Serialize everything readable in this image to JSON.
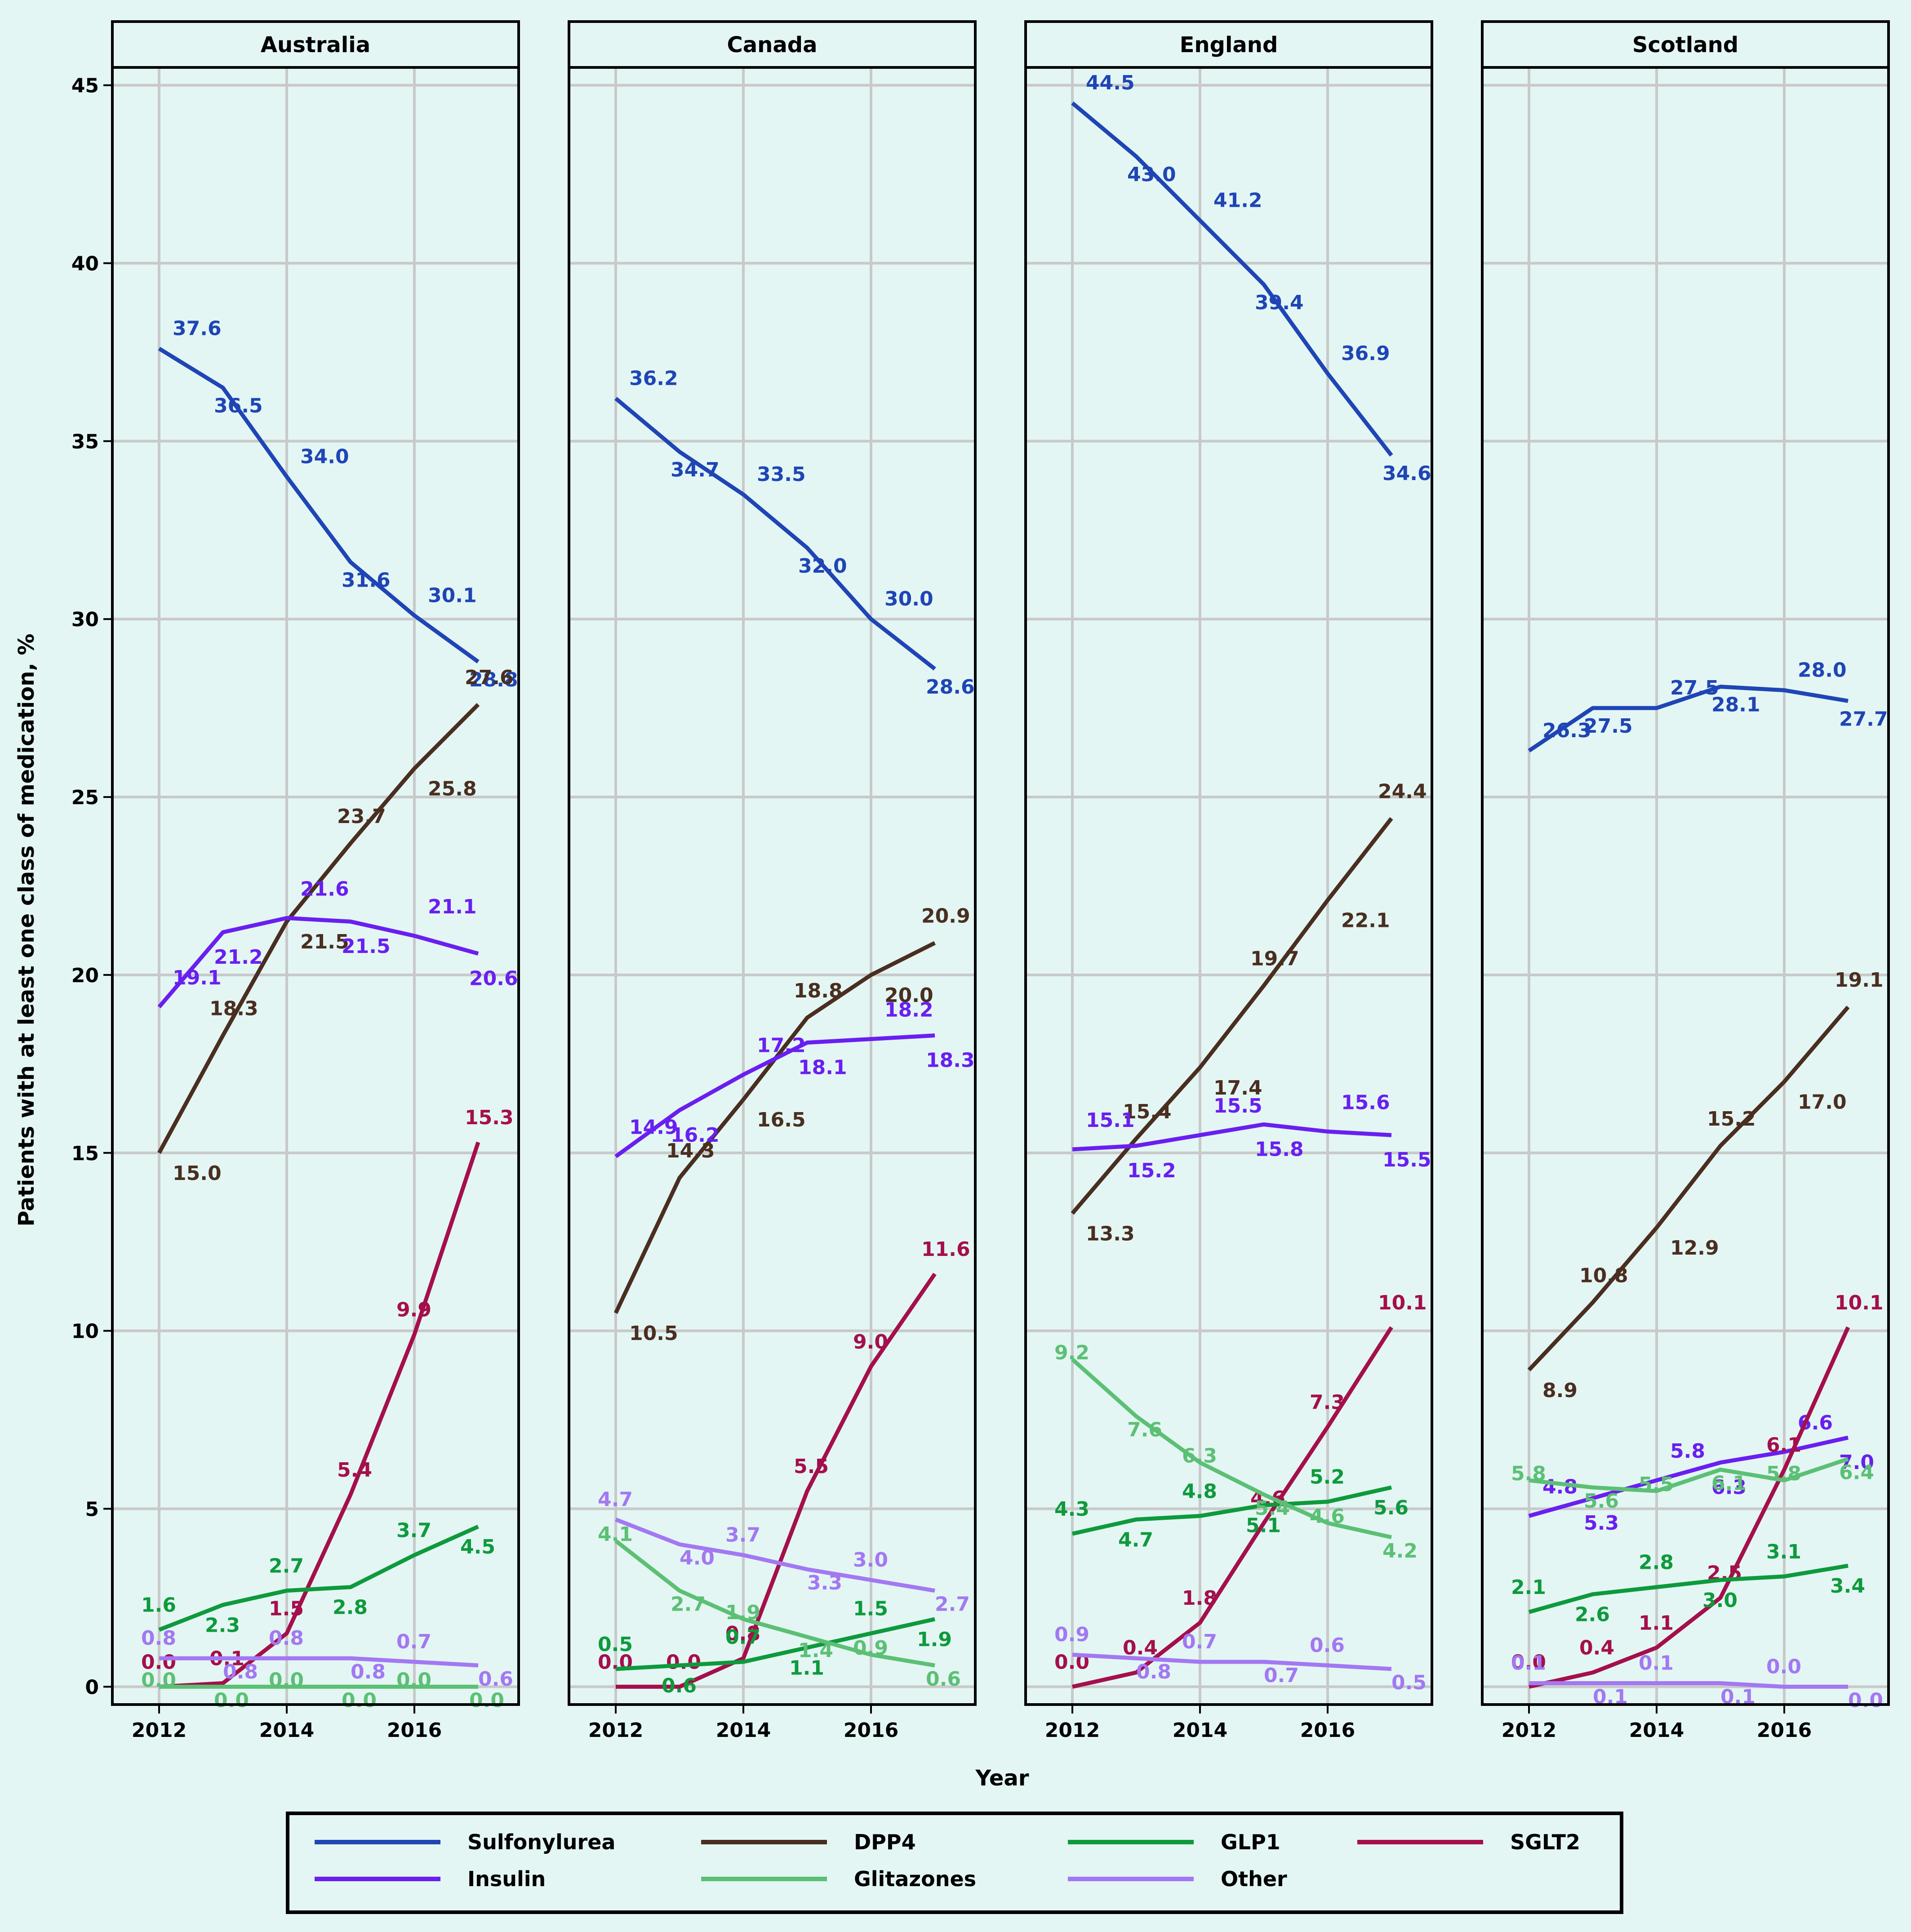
{
  "chart_data": {
    "type": "line",
    "ylabel": "Patients with at least one class of medication, %",
    "xlabel": "Year",
    "x": [
      2012,
      2013,
      2014,
      2015,
      2016,
      2017
    ],
    "xticks": [
      "2012",
      "2014",
      "2016"
    ],
    "yticks": [
      "0",
      "5",
      "10",
      "15",
      "20",
      "25",
      "30",
      "35",
      "40",
      "45"
    ],
    "ylim": [
      -0.5,
      45.5
    ],
    "grid": true,
    "legend_position": "bottom",
    "colors": {
      "Sulfonylurea": "#1f45b5",
      "DPP4": "#4a2e20",
      "GLP1": "#0e9a3c",
      "SGLT2": "#a50f4b",
      "Insulin": "#6a1ff0",
      "Glitazones": "#5cc074",
      "Other": "#a378f2"
    },
    "legend": [
      "Sulfonylurea",
      "DPP4",
      "GLP1",
      "SGLT2",
      "Insulin",
      "Glitazones",
      "Other"
    ],
    "panels": [
      {
        "name": "Australia",
        "series": [
          {
            "name": "Sulfonylurea",
            "values": [
              37.6,
              36.5,
              34.0,
              31.6,
              30.1,
              28.8
            ]
          },
          {
            "name": "DPP4",
            "values": [
              15.0,
              18.3,
              21.5,
              23.7,
              25.8,
              27.6
            ]
          },
          {
            "name": "Insulin",
            "values": [
              19.1,
              21.2,
              21.6,
              21.5,
              21.1,
              20.6
            ]
          },
          {
            "name": "SGLT2",
            "values": [
              0.0,
              0.1,
              1.5,
              5.4,
              9.9,
              15.3
            ]
          },
          {
            "name": "GLP1",
            "values": [
              1.6,
              2.3,
              2.7,
              2.8,
              3.7,
              4.5
            ]
          },
          {
            "name": "Other",
            "values": [
              0.8,
              0.8,
              0.8,
              0.8,
              0.7,
              0.6
            ]
          },
          {
            "name": "Glitazones",
            "values": [
              0.0,
              0.0,
              0.0,
              0.0,
              0.0,
              0.0
            ]
          }
        ]
      },
      {
        "name": "Canada",
        "series": [
          {
            "name": "Sulfonylurea",
            "values": [
              36.2,
              34.7,
              33.5,
              32.0,
              30.0,
              28.6
            ]
          },
          {
            "name": "DPP4",
            "values": [
              10.5,
              14.3,
              16.5,
              18.8,
              20.0,
              20.9
            ]
          },
          {
            "name": "Insulin",
            "values": [
              14.9,
              16.2,
              17.2,
              18.1,
              18.2,
              18.3
            ]
          },
          {
            "name": "SGLT2",
            "values": [
              0.0,
              0.0,
              0.8,
              5.5,
              9.0,
              11.6
            ]
          },
          {
            "name": "GLP1",
            "values": [
              0.5,
              0.6,
              0.7,
              1.1,
              1.5,
              1.9
            ]
          },
          {
            "name": "Other",
            "values": [
              4.7,
              4.0,
              3.7,
              3.3,
              3.0,
              2.7
            ]
          },
          {
            "name": "Glitazones",
            "values": [
              4.1,
              2.7,
              1.9,
              1.4,
              0.9,
              0.6
            ]
          }
        ]
      },
      {
        "name": "England",
        "series": [
          {
            "name": "Sulfonylurea",
            "values": [
              44.5,
              43.0,
              41.2,
              39.4,
              36.9,
              34.6
            ]
          },
          {
            "name": "DPP4",
            "values": [
              13.3,
              15.4,
              17.4,
              19.7,
              22.1,
              24.4
            ]
          },
          {
            "name": "Insulin",
            "values": [
              15.1,
              15.2,
              15.5,
              15.8,
              15.6,
              15.5
            ]
          },
          {
            "name": "SGLT2",
            "values": [
              0.0,
              0.4,
              1.8,
              4.6,
              7.3,
              10.1
            ]
          },
          {
            "name": "GLP1",
            "values": [
              4.3,
              4.7,
              4.8,
              5.1,
              5.2,
              5.6
            ]
          },
          {
            "name": "Other",
            "values": [
              0.9,
              0.8,
              0.7,
              0.7,
              0.6,
              0.5
            ]
          },
          {
            "name": "Glitazones",
            "values": [
              9.2,
              7.6,
              6.3,
              5.4,
              4.6,
              4.2
            ]
          }
        ]
      },
      {
        "name": "Scotland",
        "series": [
          {
            "name": "Sulfonylurea",
            "values": [
              26.3,
              27.5,
              27.5,
              28.1,
              28.0,
              27.7
            ]
          },
          {
            "name": "DPP4",
            "values": [
              8.9,
              10.8,
              12.9,
              15.2,
              17.0,
              19.1
            ]
          },
          {
            "name": "Insulin",
            "values": [
              4.8,
              5.3,
              5.8,
              6.3,
              6.6,
              7.0
            ]
          },
          {
            "name": "SGLT2",
            "values": [
              0.0,
              0.4,
              1.1,
              2.5,
              6.1,
              10.1
            ]
          },
          {
            "name": "GLP1",
            "values": [
              2.1,
              2.6,
              2.8,
              3.0,
              3.1,
              3.4
            ]
          },
          {
            "name": "Other",
            "values": [
              0.1,
              0.1,
              0.1,
              0.1,
              0.0,
              0.0
            ]
          },
          {
            "name": "Glitazones",
            "values": [
              5.8,
              5.6,
              5.5,
              6.1,
              5.8,
              6.4
            ]
          }
        ]
      }
    ]
  }
}
